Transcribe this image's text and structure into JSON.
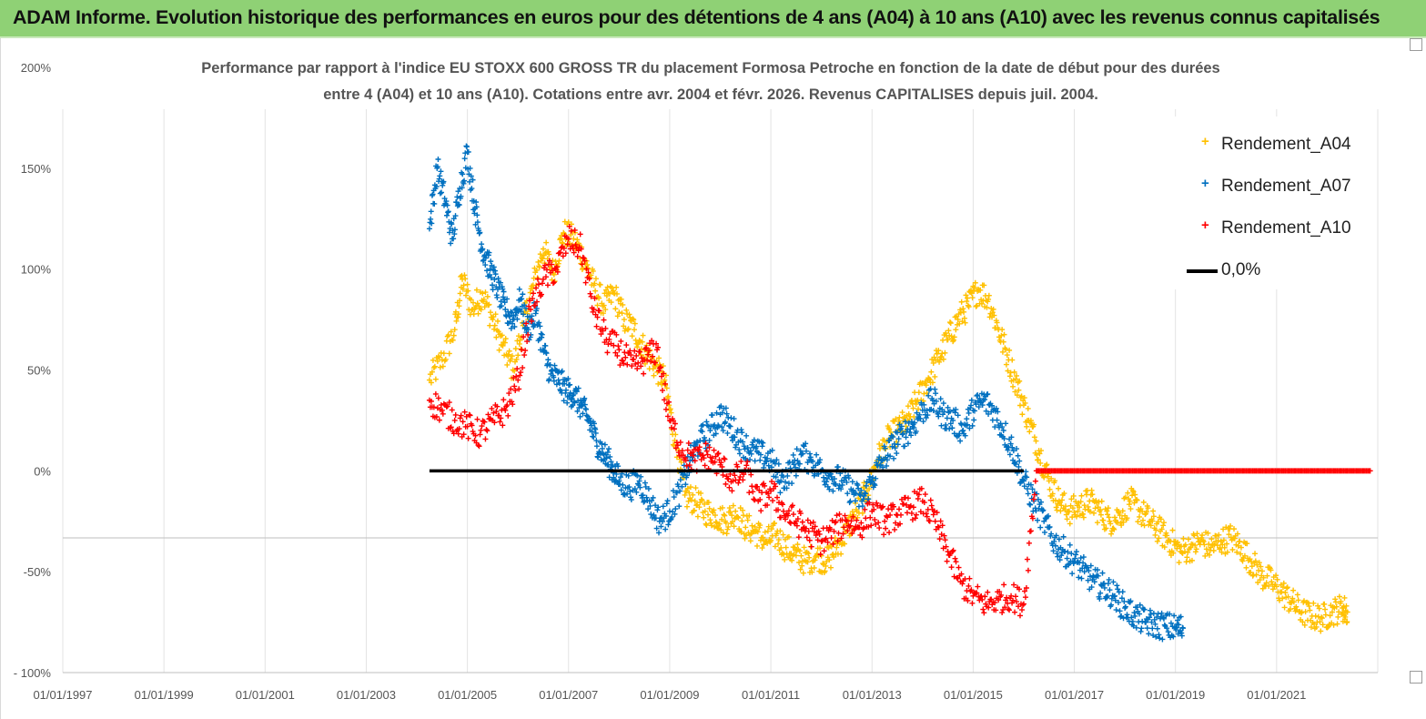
{
  "banner": {
    "title": "ADAM Informe. Evolution historique des performances en euros pour des détentions de 4 ans (A04) à 10 ans (A10) avec les revenus connus capitalisés"
  },
  "chart_title": {
    "line1": "Performance par rapport à l'indice EU STOXX 600 GROSS TR  du placement Formosa Petroche  en fonction de la date de début pour des durées",
    "line2": "entre 4 (A04) et 10 ans (A10).  Cotations entre avr. 2004 et févr. 2026. Revenus CAPITALISES depuis juil. 2004."
  },
  "legend": {
    "items": [
      {
        "label": "Rendement_A04",
        "color": "#ffc000",
        "marker": "+"
      },
      {
        "label": "Rendement_A07",
        "color": "#0070c0",
        "marker": "+"
      },
      {
        "label": "Rendement_A10",
        "color": "#ff0000",
        "marker": "+"
      },
      {
        "label": "0,0%",
        "color": "#000000",
        "marker": "line"
      }
    ]
  },
  "chart_data": {
    "type": "scatter",
    "title": "Performance par rapport à l'indice EU STOXX 600 GROSS TR du placement Formosa Petroche en fonction de la date de début pour des durées entre 4 (A04) et 10 ans (A10). Cotations entre avr. 2004 et févr. 2026. Revenus CAPITALISES depuis juil. 2004.",
    "xlabel": "",
    "ylabel": "",
    "xlim": [
      1997.0,
      2023.0
    ],
    "ylim": [
      -100,
      200
    ],
    "x_ticks": [
      1997,
      1999,
      2001,
      2003,
      2005,
      2007,
      2009,
      2011,
      2013,
      2015,
      2017,
      2019,
      2021
    ],
    "x_tick_labels": [
      "01/01/1997",
      "01/01/1999",
      "01/01/2001",
      "01/01/2003",
      "01/01/2005",
      "01/01/2007",
      "01/01/2009",
      "01/01/2011",
      "01/01/2013",
      "01/01/2015",
      "01/01/2017",
      "01/01/2019",
      "01/01/2021"
    ],
    "y_ticks": [
      -100,
      -50,
      0,
      50,
      100,
      150,
      200
    ],
    "y_tick_labels": [
      "- 100%",
      "-50%",
      "0%",
      "50%",
      "100%",
      "150%",
      "200%"
    ],
    "grid": "vertical",
    "legend_position": "top-right",
    "series": [
      {
        "name": "Rendement_A04",
        "color": "#ffc000",
        "x": [
          2004.25,
          2004.5,
          2004.75,
          2004.9,
          2005.1,
          2005.3,
          2005.5,
          2005.7,
          2005.9,
          2006.1,
          2006.3,
          2006.5,
          2006.7,
          2006.9,
          2007.1,
          2007.3,
          2007.5,
          2007.7,
          2007.9,
          2008.1,
          2008.3,
          2008.5,
          2008.7,
          2008.9,
          2009.1,
          2009.3,
          2009.5,
          2009.7,
          2009.9,
          2010.1,
          2010.3,
          2010.5,
          2010.7,
          2010.9,
          2011.1,
          2011.3,
          2011.5,
          2011.7,
          2011.9,
          2012.1,
          2012.3,
          2012.5,
          2012.7,
          2012.9,
          2013.1,
          2013.3,
          2013.5,
          2013.7,
          2013.9,
          2014.1,
          2014.3,
          2014.5,
          2014.7,
          2014.9,
          2015.1,
          2015.3,
          2015.5,
          2015.7,
          2015.9,
          2016.1,
          2016.3,
          2016.5,
          2016.7,
          2016.9,
          2017.1,
          2017.3,
          2017.5,
          2017.7,
          2017.9,
          2018.1,
          2018.3,
          2018.5,
          2018.7,
          2018.9,
          2019.1,
          2019.3,
          2019.5,
          2019.7,
          2019.9,
          2020.1,
          2020.3,
          2020.5,
          2020.7,
          2020.9,
          2021.1,
          2021.3,
          2021.5,
          2021.7,
          2021.9,
          2022.1,
          2022.3,
          2022.4
        ],
        "y": [
          45,
          55,
          70,
          95,
          80,
          88,
          75,
          62,
          50,
          72,
          92,
          110,
          98,
          118,
          115,
          105,
          92,
          82,
          88,
          75,
          70,
          60,
          52,
          45,
          15,
          -12,
          -15,
          -20,
          -22,
          -25,
          -20,
          -28,
          -30,
          -35,
          -32,
          -38,
          -42,
          -45,
          -42,
          -45,
          -38,
          -30,
          -20,
          -10,
          5,
          15,
          20,
          25,
          35,
          45,
          55,
          65,
          75,
          82,
          90,
          85,
          70,
          55,
          40,
          25,
          10,
          -5,
          -15,
          -20,
          -18,
          -15,
          -20,
          -25,
          -22,
          -15,
          -20,
          -25,
          -30,
          -35,
          -40,
          -38,
          -35,
          -38,
          -35,
          -33,
          -38,
          -45,
          -52,
          -55,
          -60,
          -65,
          -70,
          -72,
          -73,
          -70,
          -68,
          -70
        ]
      },
      {
        "name": "Rendement_A07",
        "color": "#0070c0",
        "x": [
          2004.25,
          2004.4,
          2004.55,
          2004.7,
          2004.85,
          2005.0,
          2005.15,
          2005.3,
          2005.45,
          2005.6,
          2005.75,
          2005.9,
          2006.05,
          2006.2,
          2006.35,
          2006.5,
          2006.65,
          2006.8,
          2006.95,
          2007.1,
          2007.25,
          2007.4,
          2007.55,
          2007.7,
          2007.85,
          2008.0,
          2008.2,
          2008.4,
          2008.6,
          2008.8,
          2009.0,
          2009.2,
          2009.4,
          2009.6,
          2009.8,
          2010.0,
          2010.2,
          2010.4,
          2010.6,
          2010.8,
          2011.0,
          2011.2,
          2011.4,
          2011.6,
          2011.8,
          2012.0,
          2012.2,
          2012.4,
          2012.6,
          2012.8,
          2013.0,
          2013.2,
          2013.4,
          2013.6,
          2013.8,
          2014.0,
          2014.2,
          2014.4,
          2014.6,
          2014.8,
          2015.0,
          2015.2,
          2015.4,
          2015.6,
          2015.8,
          2016.0,
          2016.2,
          2016.4,
          2016.6,
          2016.8,
          2017.0,
          2017.2,
          2017.4,
          2017.6,
          2017.8,
          2018.0,
          2018.2,
          2018.4,
          2018.6,
          2018.8,
          2019.0,
          2019.15
        ],
        "y": [
          120,
          150,
          135,
          115,
          140,
          158,
          130,
          110,
          100,
          90,
          80,
          75,
          85,
          70,
          78,
          60,
          48,
          45,
          40,
          38,
          32,
          25,
          15,
          8,
          2,
          -5,
          -8,
          -5,
          -15,
          -25,
          -20,
          -10,
          5,
          15,
          20,
          28,
          22,
          15,
          10,
          8,
          5,
          -5,
          0,
          8,
          5,
          0,
          -3,
          -5,
          -10,
          -15,
          -5,
          5,
          12,
          18,
          22,
          30,
          35,
          28,
          25,
          20,
          30,
          35,
          30,
          20,
          10,
          -5,
          -15,
          -25,
          -35,
          -40,
          -45,
          -50,
          -55,
          -58,
          -62,
          -68,
          -72,
          -75,
          -76,
          -77,
          -78,
          -78
        ]
      },
      {
        "name": "Rendement_A10",
        "color": "#ff0000",
        "x": [
          2004.25,
          2004.5,
          2004.75,
          2005.0,
          2005.25,
          2005.5,
          2005.75,
          2006.0,
          2006.25,
          2006.5,
          2006.75,
          2007.0,
          2007.25,
          2007.5,
          2007.75,
          2008.0,
          2008.25,
          2008.5,
          2008.75,
          2009.0,
          2009.25,
          2009.5,
          2009.75,
          2010.0,
          2010.25,
          2010.5,
          2010.75,
          2011.0,
          2011.25,
          2011.5,
          2011.75,
          2012.0,
          2012.25,
          2012.5,
          2012.75,
          2013.0,
          2013.25,
          2013.5,
          2013.75,
          2014.0,
          2014.25,
          2014.5,
          2014.75,
          2015.0,
          2015.25,
          2015.5,
          2015.75,
          2016.0,
          2016.25,
          2016.5,
          2017.0,
          2018.0,
          2019.0,
          2020.0,
          2021.0,
          2022.0,
          2022.85
        ],
        "y": [
          35,
          30,
          25,
          22,
          18,
          25,
          30,
          45,
          80,
          95,
          100,
          115,
          110,
          80,
          65,
          60,
          52,
          55,
          60,
          25,
          10,
          5,
          8,
          3,
          -5,
          0,
          -15,
          -10,
          -20,
          -25,
          -30,
          -35,
          -30,
          -25,
          -28,
          -20,
          -25,
          -22,
          -18,
          -15,
          -25,
          -40,
          -55,
          -62,
          -66,
          -64,
          -62,
          -66,
          0,
          0,
          0,
          0,
          0,
          0,
          0,
          0,
          0
        ]
      },
      {
        "name": "0,0%",
        "color": "#000000",
        "type": "line",
        "x": [
          2004.25,
          2016.0
        ],
        "y": [
          0,
          0
        ]
      }
    ]
  }
}
